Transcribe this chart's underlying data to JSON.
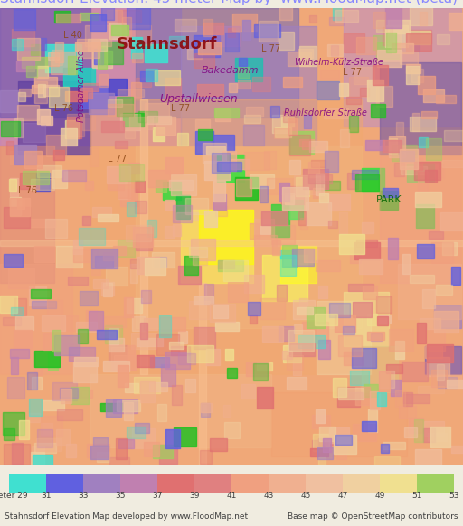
{
  "title": "Stahnsdorf Elevation: 45 meter Map by  www.FloodMap.net (beta)",
  "title_color": "#8888ff",
  "title_fontsize": 11,
  "bg_color": "#f0ece0",
  "legend_values": [
    29,
    31,
    33,
    35,
    37,
    39,
    41,
    43,
    45,
    47,
    49,
    51,
    53
  ],
  "legend_colors": [
    "#40e0d0",
    "#6060e0",
    "#a080c0",
    "#c080b0",
    "#e07070",
    "#e08080",
    "#f0a080",
    "#f0b090",
    "#f0c0a0",
    "#f0d0a0",
    "#f0e090",
    "#a0d060",
    "#20c020"
  ],
  "footer_left": "Stahnsdorf Elevation Map developed by www.FloodMap.net",
  "footer_right": "Base map © OpenStreetMap contributors",
  "footer_fontsize": 6.5,
  "text_items": [
    [
      185,
      460,
      "Stahnsdorf",
      13,
      "#8b0000",
      0,
      "bold",
      "normal"
    ],
    [
      200,
      390,
      "L 77",
      7,
      "#8b4513",
      0,
      "normal",
      "normal"
    ],
    [
      70,
      390,
      "L 76",
      7,
      "#8b4513",
      0,
      "normal",
      "normal"
    ],
    [
      30,
      300,
      "L 76",
      7,
      "#8b4513",
      0,
      "normal",
      "normal"
    ],
    [
      390,
      430,
      "L 77",
      7,
      "#8b4513",
      0,
      "normal",
      "normal"
    ],
    [
      130,
      335,
      "L 77",
      7,
      "#8b4513",
      0,
      "normal",
      "normal"
    ],
    [
      80,
      470,
      "L 40",
      7,
      "#8b4513",
      0,
      "normal",
      "normal"
    ],
    [
      430,
      290,
      "PARK",
      8,
      "#006400",
      0,
      "normal",
      "normal"
    ],
    [
      220,
      400,
      "Upstallwiesen",
      9,
      "#800080",
      0,
      "italic",
      "normal"
    ],
    [
      255,
      432,
      "Bakedamm",
      8,
      "#800080",
      0,
      "italic",
      "normal"
    ],
    [
      90,
      415,
      "Potsdamer Allee",
      7,
      "#800080",
      90,
      "italic",
      "normal"
    ],
    [
      360,
      385,
      "Ruhlsdorfer Straße",
      7,
      "#800080",
      0,
      "italic",
      "normal"
    ],
    [
      375,
      440,
      "Wilhelm-Külz-Straße",
      7,
      "#800080",
      0,
      "italic",
      "normal"
    ],
    [
      300,
      455,
      "L 77",
      7,
      "#8b4513",
      0,
      "normal",
      "normal"
    ]
  ],
  "patches_data": [
    [
      0,
      350,
      200,
      150,
      "#c080c0",
      0.7
    ],
    [
      0,
      380,
      100,
      120,
      "#8060b0",
      0.8
    ],
    [
      20,
      340,
      80,
      80,
      "#6040a0",
      0.75
    ],
    [
      150,
      380,
      180,
      120,
      "#8070b0",
      0.65
    ],
    [
      200,
      350,
      150,
      130,
      "#a080c0",
      0.6
    ],
    [
      380,
      370,
      130,
      130,
      "#c090c0",
      0.6
    ],
    [
      420,
      340,
      90,
      100,
      "#8060a0",
      0.7
    ],
    [
      0,
      200,
      60,
      150,
      "#e08878",
      0.5
    ],
    [
      0,
      100,
      80,
      120,
      "#f0a080",
      0.4
    ],
    [
      100,
      100,
      300,
      300,
      "#f0a870",
      0.5
    ],
    [
      150,
      150,
      250,
      200,
      "#f0b880",
      0.4
    ],
    [
      200,
      200,
      80,
      80,
      "#f8e060",
      0.8
    ],
    [
      220,
      220,
      60,
      60,
      "#ffff00",
      0.6
    ],
    [
      290,
      180,
      50,
      50,
      "#f8f060",
      0.7
    ],
    [
      310,
      200,
      40,
      40,
      "#ffff20",
      0.6
    ],
    [
      240,
      310,
      30,
      30,
      "#40e040",
      0.9
    ],
    [
      260,
      290,
      25,
      25,
      "#20c020",
      0.9
    ],
    [
      300,
      250,
      20,
      35,
      "#40d040",
      0.85
    ],
    [
      320,
      270,
      15,
      20,
      "#60e060",
      0.8
    ],
    [
      180,
      290,
      20,
      20,
      "#40d840",
      0.9
    ],
    [
      195,
      270,
      15,
      25,
      "#20c040",
      0.85
    ],
    [
      400,
      300,
      25,
      25,
      "#40e040",
      0.9
    ],
    [
      420,
      280,
      20,
      20,
      "#20c020",
      0.9
    ],
    [
      450,
      310,
      30,
      20,
      "#60e060",
      0.8
    ],
    [
      460,
      260,
      20,
      25,
      "#40d040",
      0.85
    ],
    [
      50,
      430,
      40,
      30,
      "#40e0d0",
      0.9
    ],
    [
      70,
      415,
      35,
      20,
      "#20d0c0",
      0.85
    ],
    [
      160,
      440,
      25,
      20,
      "#40e0d0",
      0.9
    ],
    [
      260,
      420,
      30,
      25,
      "#20c0b0",
      0.8
    ],
    [
      90,
      390,
      30,
      25,
      "#6060e0",
      0.85
    ],
    [
      120,
      405,
      20,
      18,
      "#4040d0",
      0.8
    ],
    [
      350,
      400,
      25,
      20,
      "#8080c0",
      0.7
    ],
    [
      40,
      300,
      15,
      20,
      "#4040d0",
      0.8
    ],
    [
      480,
      150,
      30,
      25,
      "#a080c0",
      0.7
    ],
    [
      470,
      100,
      40,
      30,
      "#8060b0",
      0.75
    ],
    [
      420,
      200,
      90,
      150,
      "#f0a080",
      0.5
    ],
    [
      440,
      160,
      70,
      60,
      "#f0b090",
      0.4
    ],
    [
      0,
      0,
      512,
      100,
      "#f0a878",
      0.3
    ],
    [
      100,
      20,
      200,
      80,
      "#f0b888",
      0.4
    ],
    [
      300,
      10,
      150,
      70,
      "#f0a070",
      0.35
    ],
    [
      155,
      100,
      8,
      300,
      "#f8c090",
      0.6
    ],
    [
      220,
      0,
      8,
      200,
      "#f8c090",
      0.5
    ],
    [
      0,
      240,
      512,
      6,
      "#f8c898",
      0.4
    ],
    [
      350,
      100,
      60,
      80,
      "#f0d0a0",
      0.5
    ],
    [
      380,
      130,
      50,
      60,
      "#f0e090",
      0.6
    ],
    [
      400,
      80,
      40,
      50,
      "#e0c080",
      0.55
    ]
  ]
}
